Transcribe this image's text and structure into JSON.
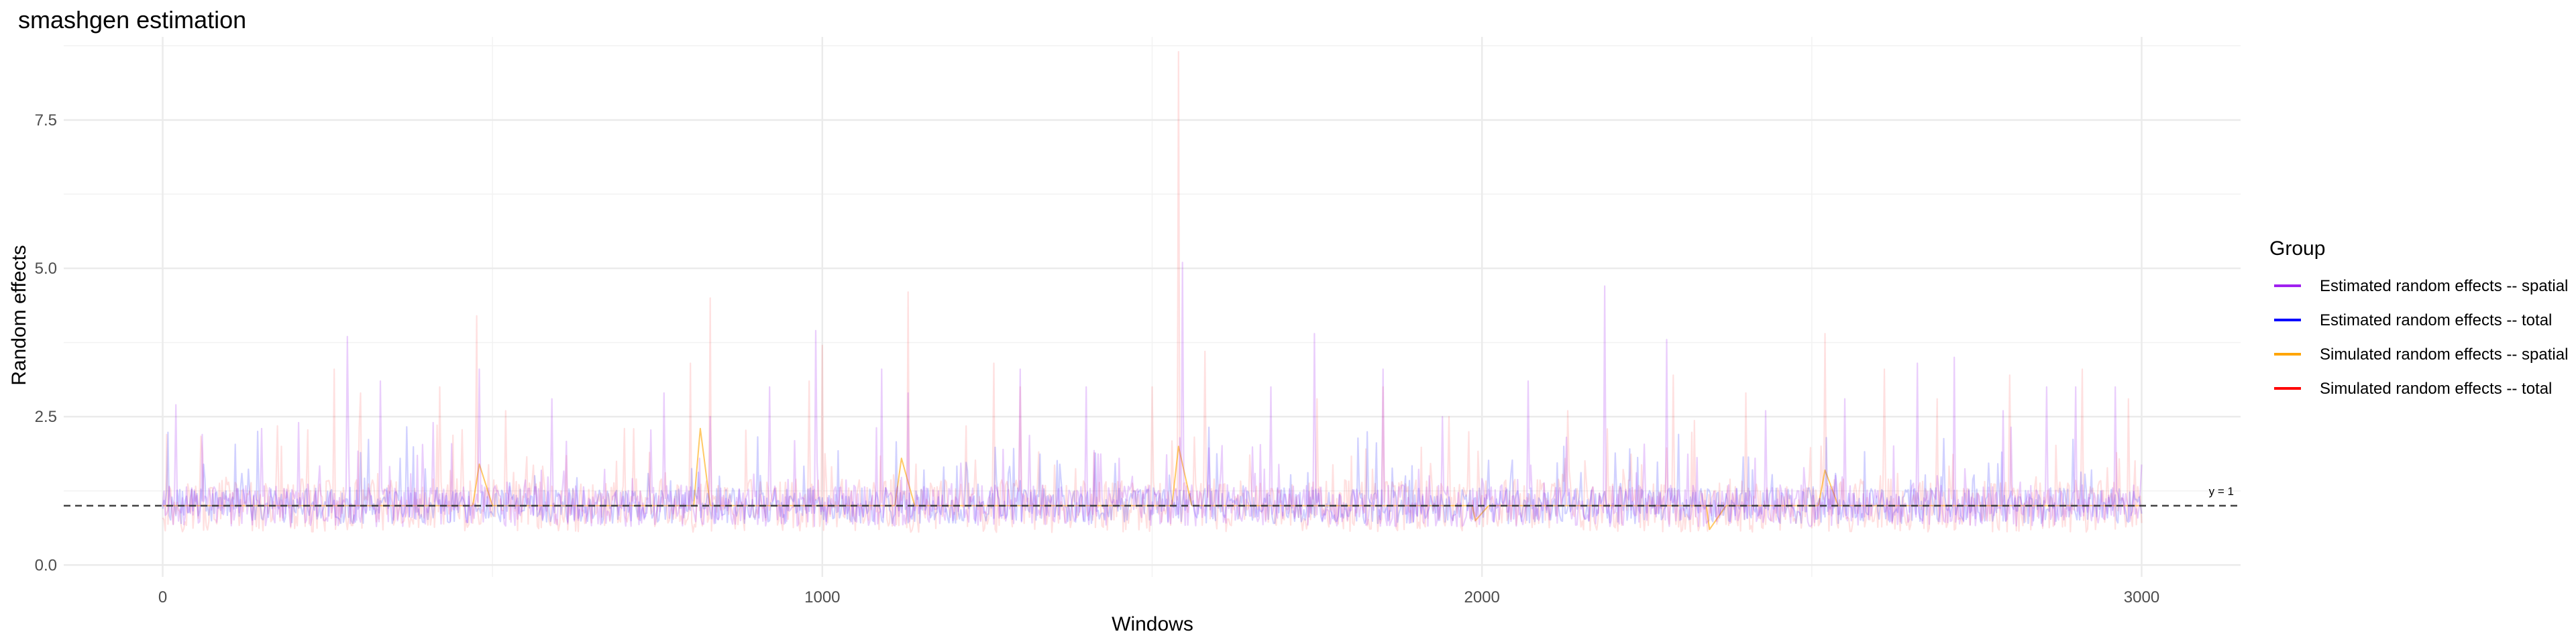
{
  "chart_data": {
    "type": "line",
    "title": "smashgen estimation",
    "xlabel": "Windows",
    "ylabel": "Random effects",
    "xlim": [
      -150,
      3150
    ],
    "ylim": [
      -0.2,
      8.9
    ],
    "x_ticks": [
      0,
      1000,
      2000,
      3000
    ],
    "y_ticks": [
      0.0,
      2.5,
      5.0,
      7.5
    ],
    "x_tick_labels": [
      "0",
      "1000",
      "2000",
      "3000"
    ],
    "y_tick_labels": [
      "0.0",
      "2.5",
      "5.0",
      "7.5"
    ],
    "grid": true,
    "legend": {
      "title": "Group",
      "placement": "right",
      "items": [
        {
          "label": "Estimated random effects -- spatial",
          "color": "#a020f0"
        },
        {
          "label": "Estimated random effects -- total",
          "color": "#0000ff"
        },
        {
          "label": "Simulated random effects -- spatial",
          "color": "#ffa500"
        },
        {
          "label": "Simulated random effects -- total",
          "color": "#ff0000"
        }
      ]
    },
    "reference_line": {
      "y": 1,
      "label": "y = 1",
      "style": "dashed",
      "color": "#404040"
    },
    "x_domain": [
      0,
      3000
    ],
    "series": [
      {
        "name": "Simulated random effects -- total",
        "color": "#ff0000",
        "opacity": 0.12,
        "baseline": 1.0,
        "spread": 0.45,
        "peaks": [
          [
            5,
            2.2
          ],
          [
            60,
            1.9
          ],
          [
            180,
            2.0
          ],
          [
            260,
            3.3
          ],
          [
            300,
            2.9
          ],
          [
            420,
            3.0
          ],
          [
            475,
            4.2
          ],
          [
            520,
            2.6
          ],
          [
            700,
            2.3
          ],
          [
            800,
            3.4
          ],
          [
            830,
            4.5
          ],
          [
            980,
            3.1
          ],
          [
            1000,
            3.7
          ],
          [
            1130,
            4.6
          ],
          [
            1260,
            3.4
          ],
          [
            1300,
            3.0
          ],
          [
            1500,
            3.0
          ],
          [
            1540,
            8.65
          ],
          [
            1580,
            3.6
          ],
          [
            1750,
            2.8
          ],
          [
            1850,
            3.0
          ],
          [
            1950,
            2.5
          ],
          [
            2130,
            2.6
          ],
          [
            2290,
            3.2
          ],
          [
            2400,
            2.9
          ],
          [
            2520,
            3.9
          ],
          [
            2610,
            3.3
          ],
          [
            2690,
            2.8
          ],
          [
            2800,
            3.2
          ],
          [
            2910,
            3.3
          ],
          [
            2980,
            2.8
          ]
        ]
      },
      {
        "name": "Simulated random effects -- spatial",
        "color": "#ffa500",
        "opacity": 0.6,
        "steps": [
          [
            0,
            1.0
          ],
          [
            470,
            1.0
          ],
          [
            480,
            1.7
          ],
          [
            500,
            1.0
          ],
          [
            805,
            1.0
          ],
          [
            815,
            2.3
          ],
          [
            830,
            1.0
          ],
          [
            1110,
            1.0
          ],
          [
            1120,
            1.8
          ],
          [
            1140,
            1.0
          ],
          [
            1530,
            1.0
          ],
          [
            1540,
            2.0
          ],
          [
            1560,
            1.0
          ],
          [
            1985,
            1.0
          ],
          [
            1990,
            0.75
          ],
          [
            2010,
            1.0
          ],
          [
            2340,
            1.0
          ],
          [
            2345,
            0.6
          ],
          [
            2370,
            1.0
          ],
          [
            2510,
            1.0
          ],
          [
            2520,
            1.6
          ],
          [
            2540,
            1.0
          ],
          [
            3000,
            1.0
          ]
        ]
      },
      {
        "name": "Estimated random effects -- total",
        "color": "#0000ff",
        "opacity": 0.18,
        "baseline": 1.0,
        "spread": 0.3
      },
      {
        "name": "Estimated random effects -- spatial",
        "color": "#a020f0",
        "opacity": 0.22,
        "baseline": 1.0,
        "spread": 0.35,
        "peaks": [
          [
            20,
            2.7
          ],
          [
            60,
            2.2
          ],
          [
            150,
            2.3
          ],
          [
            205,
            2.4
          ],
          [
            280,
            3.85
          ],
          [
            330,
            3.1
          ],
          [
            410,
            2.4
          ],
          [
            480,
            3.3
          ],
          [
            590,
            2.8
          ],
          [
            760,
            2.9
          ],
          [
            830,
            2.5
          ],
          [
            920,
            3.0
          ],
          [
            990,
            3.95
          ],
          [
            1090,
            3.3
          ],
          [
            1130,
            2.9
          ],
          [
            1300,
            3.3
          ],
          [
            1400,
            3.0
          ],
          [
            1545,
            5.1
          ],
          [
            1680,
            3.0
          ],
          [
            1745,
            3.9
          ],
          [
            1850,
            3.3
          ],
          [
            1940,
            2.5
          ],
          [
            2070,
            3.1
          ],
          [
            2185,
            4.7
          ],
          [
            2280,
            3.8
          ],
          [
            2430,
            2.6
          ],
          [
            2550,
            2.8
          ],
          [
            2660,
            3.4
          ],
          [
            2715,
            3.5
          ],
          [
            2790,
            2.6
          ],
          [
            2855,
            3.0
          ],
          [
            2900,
            3.0
          ],
          [
            2960,
            3.0
          ]
        ]
      }
    ]
  }
}
